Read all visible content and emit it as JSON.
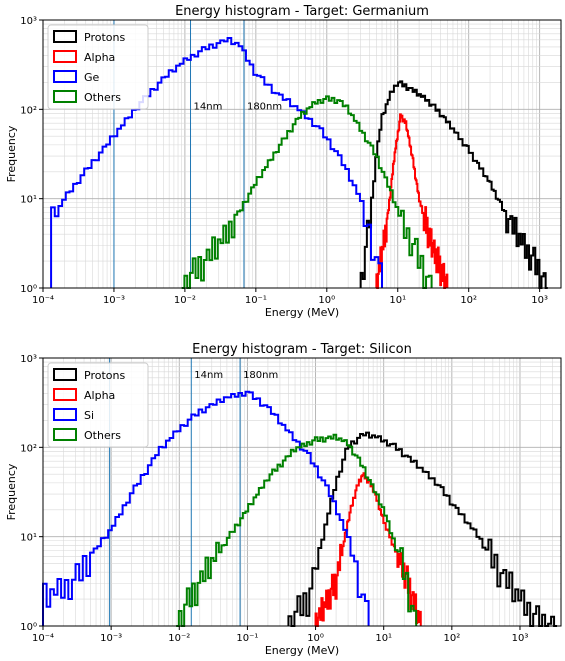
{
  "chart_data": [
    {
      "type": "histogram",
      "title": "Energy histogram - Target: Germanium",
      "xlabel": "Energy (MeV)",
      "ylabel": "Frequency",
      "x_scale": "log",
      "y_scale": "log",
      "xlim": [
        0.0001,
        2000
      ],
      "ylim": [
        1,
        1000
      ],
      "grid": true,
      "legend_position": "top-left",
      "xticks": [
        {
          "v": 0.0001,
          "label": "10⁻⁴"
        },
        {
          "v": 0.001,
          "label": "10⁻³"
        },
        {
          "v": 0.01,
          "label": "10⁻²"
        },
        {
          "v": 0.1,
          "label": "10⁻¹"
        },
        {
          "v": 1,
          "label": "10⁰"
        },
        {
          "v": 10,
          "label": "10¹"
        },
        {
          "v": 100,
          "label": "10²"
        },
        {
          "v": 1000,
          "label": "10³"
        }
      ],
      "yticks": [
        {
          "v": 1,
          "label": "10⁰"
        },
        {
          "v": 10,
          "label": "10¹"
        },
        {
          "v": 100,
          "label": "10²"
        },
        {
          "v": 1000,
          "label": "10³"
        }
      ],
      "vlines": [
        {
          "x": 0.001,
          "label": ""
        },
        {
          "x": 0.012,
          "label": "14nm"
        },
        {
          "x": 0.068,
          "label": "180nm"
        }
      ],
      "vline_label_y": 100,
      "series": [
        {
          "name": "Protons",
          "color": "#000000",
          "points": [
            [
              3,
              1
            ],
            [
              4,
              5
            ],
            [
              5,
              30
            ],
            [
              6,
              80
            ],
            [
              8,
              150
            ],
            [
              10,
              200
            ],
            [
              15,
              170
            ],
            [
              25,
              130
            ],
            [
              40,
              90
            ],
            [
              60,
              60
            ],
            [
              100,
              35
            ],
            [
              200,
              15
            ],
            [
              400,
              5
            ],
            [
              800,
              2
            ],
            [
              1300,
              1
            ]
          ]
        },
        {
          "name": "Alpha",
          "color": "#ff0000",
          "points": [
            [
              5,
              1
            ],
            [
              7,
              5
            ],
            [
              9,
              30
            ],
            [
              11,
              85
            ],
            [
              13,
              70
            ],
            [
              16,
              30
            ],
            [
              20,
              10
            ],
            [
              30,
              3
            ],
            [
              50,
              1
            ]
          ]
        },
        {
          "name": "Ge",
          "color": "#0000ff",
          "points": [
            [
              0.00013,
              5
            ],
            [
              0.0002,
              10
            ],
            [
              0.0003,
              15
            ],
            [
              0.0005,
              25
            ],
            [
              0.001,
              50
            ],
            [
              0.002,
              100
            ],
            [
              0.005,
              220
            ],
            [
              0.01,
              350
            ],
            [
              0.02,
              480
            ],
            [
              0.04,
              600
            ],
            [
              0.06,
              520
            ],
            [
              0.1,
              250
            ],
            [
              0.2,
              150
            ],
            [
              0.4,
              100
            ],
            [
              0.8,
              60
            ],
            [
              1.5,
              30
            ],
            [
              3,
              10
            ],
            [
              5,
              2
            ],
            [
              6,
              1
            ]
          ]
        },
        {
          "name": "Others",
          "color": "#008000",
          "points": [
            [
              0.009,
              1
            ],
            [
              0.02,
              2
            ],
            [
              0.04,
              4
            ],
            [
              0.07,
              9
            ],
            [
              0.1,
              15
            ],
            [
              0.2,
              35
            ],
            [
              0.4,
              80
            ],
            [
              0.7,
              120
            ],
            [
              1,
              130
            ],
            [
              1.5,
              125
            ],
            [
              2,
              100
            ],
            [
              3,
              60
            ],
            [
              5,
              30
            ],
            [
              8,
              12
            ],
            [
              12,
              5
            ],
            [
              20,
              2
            ],
            [
              30,
              1
            ]
          ]
        }
      ]
    },
    {
      "type": "histogram",
      "title": "Energy histogram - Target: Silicon",
      "xlabel": "Energy (MeV)",
      "ylabel": "Frequency",
      "x_scale": "log",
      "y_scale": "log",
      "xlim": [
        0.0001,
        4000
      ],
      "ylim": [
        1,
        1000
      ],
      "grid": true,
      "legend_position": "top-left",
      "xticks": [
        {
          "v": 0.0001,
          "label": "10⁻⁴"
        },
        {
          "v": 0.001,
          "label": "10⁻³"
        },
        {
          "v": 0.01,
          "label": "10⁻²"
        },
        {
          "v": 0.1,
          "label": "10⁻¹"
        },
        {
          "v": 1,
          "label": "10⁰"
        },
        {
          "v": 10,
          "label": "10¹"
        },
        {
          "v": 100,
          "label": "10²"
        },
        {
          "v": 1000,
          "label": "10³"
        }
      ],
      "yticks": [
        {
          "v": 1,
          "label": "10⁰"
        },
        {
          "v": 10,
          "label": "10¹"
        },
        {
          "v": 100,
          "label": "10²"
        },
        {
          "v": 1000,
          "label": "10³"
        }
      ],
      "vlines": [
        {
          "x": 0.00095,
          "label": ""
        },
        {
          "x": 0.015,
          "label": "14nm"
        },
        {
          "x": 0.078,
          "label": "180nm"
        }
      ],
      "vline_label_y": 600,
      "series": [
        {
          "name": "Protons",
          "color": "#000000",
          "points": [
            [
              0.4,
              1
            ],
            [
              0.8,
              2
            ],
            [
              1.2,
              8
            ],
            [
              2,
              40
            ],
            [
              3,
              100
            ],
            [
              5,
              140
            ],
            [
              8,
              130
            ],
            [
              15,
              100
            ],
            [
              30,
              65
            ],
            [
              60,
              40
            ],
            [
              120,
              20
            ],
            [
              250,
              10
            ],
            [
              500,
              4
            ],
            [
              1000,
              2
            ],
            [
              2000,
              1
            ],
            [
              3500,
              1
            ]
          ]
        },
        {
          "name": "Alpha",
          "color": "#ff0000",
          "points": [
            [
              1,
              1
            ],
            [
              2,
              3
            ],
            [
              3,
              15
            ],
            [
              4,
              35
            ],
            [
              5,
              50
            ],
            [
              7,
              35
            ],
            [
              10,
              15
            ],
            [
              20,
              4
            ],
            [
              35,
              1
            ]
          ]
        },
        {
          "name": "Si",
          "color": "#0000ff",
          "points": [
            [
              0.0001,
              2
            ],
            [
              0.0003,
              3
            ],
            [
              0.0005,
              6
            ],
            [
              0.001,
              12
            ],
            [
              0.002,
              30
            ],
            [
              0.005,
              90
            ],
            [
              0.01,
              160
            ],
            [
              0.02,
              250
            ],
            [
              0.05,
              360
            ],
            [
              0.1,
              410
            ],
            [
              0.2,
              280
            ],
            [
              0.4,
              150
            ],
            [
              0.8,
              80
            ],
            [
              1.5,
              35
            ],
            [
              3,
              10
            ],
            [
              5,
              2
            ],
            [
              6,
              1
            ]
          ]
        },
        {
          "name": "Others",
          "color": "#008000",
          "points": [
            [
              0.009,
              1
            ],
            [
              0.02,
              3
            ],
            [
              0.04,
              7
            ],
            [
              0.1,
              20
            ],
            [
              0.2,
              45
            ],
            [
              0.5,
              95
            ],
            [
              1,
              120
            ],
            [
              2,
              130
            ],
            [
              3,
              110
            ],
            [
              5,
              60
            ],
            [
              10,
              20
            ],
            [
              20,
              4
            ],
            [
              30,
              1
            ]
          ]
        }
      ]
    }
  ]
}
